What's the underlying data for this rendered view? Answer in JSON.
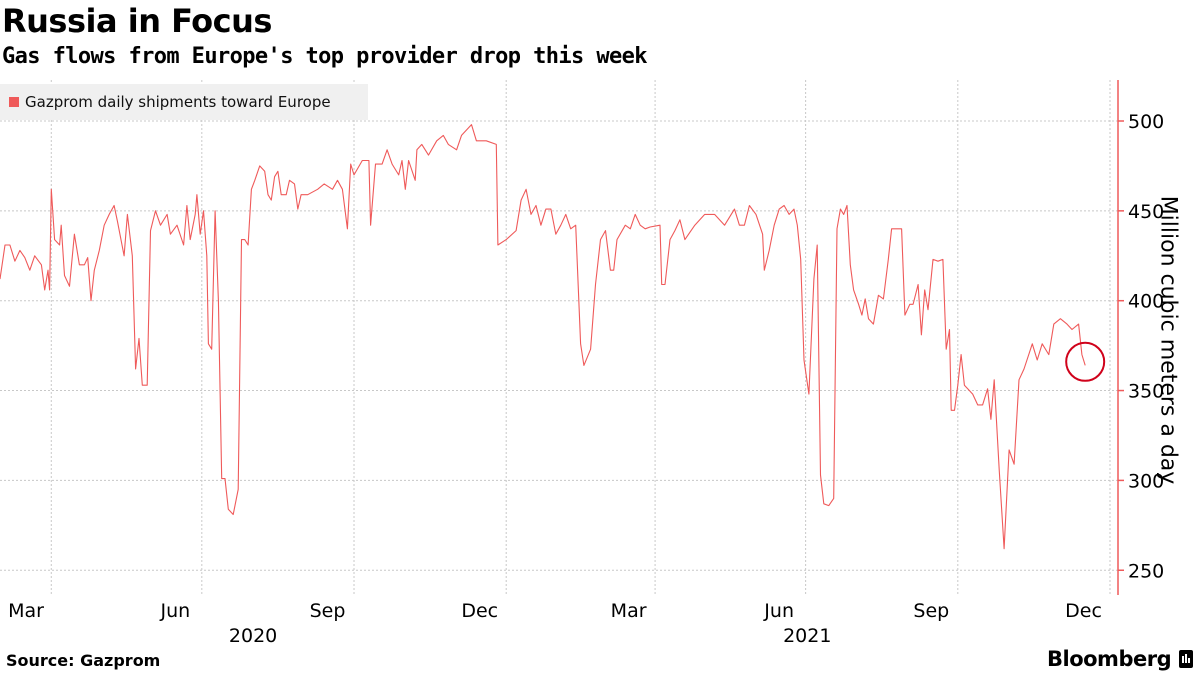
{
  "chart_data": {
    "type": "line",
    "title": "Russia in Focus",
    "subtitle": "Gas flows from Europe's top provider drop this week",
    "ylabel": "Million cubic meters a day",
    "xlabel": "",
    "ylim": [
      238,
      520
    ],
    "yticks": [
      250,
      300,
      350,
      400,
      450,
      500
    ],
    "x_unit": "days since 2020-03-01",
    "xlim": [
      0,
      671
    ],
    "grid": true,
    "legend_placement": "top-left",
    "month_ticks": [
      {
        "label": "Mar",
        "day": 15
      },
      {
        "label": "Jun",
        "day": 106
      },
      {
        "label": "Sep",
        "day": 198
      },
      {
        "label": "Dec",
        "day": 290
      },
      {
        "label": "Mar",
        "day": 380
      },
      {
        "label": "Jun",
        "day": 471
      },
      {
        "label": "Sep",
        "day": 563
      },
      {
        "label": "Dec",
        "day": 655
      }
    ],
    "quarter_gridlines_days": [
      31,
      122,
      214,
      306,
      396,
      487,
      579,
      671
    ],
    "years": [
      {
        "label": "2020",
        "day": 153
      },
      {
        "label": "2021",
        "day": 488
      }
    ],
    "series": [
      {
        "name": "Gazprom daily shipments toward Europe",
        "color": "#ef5a5a",
        "days": [
          0,
          3,
          6,
          9,
          12,
          15,
          18,
          21,
          25,
          27,
          29,
          30,
          31,
          33,
          36,
          37,
          39,
          42,
          45,
          48,
          51,
          53,
          55,
          57,
          60,
          63,
          66,
          69,
          71,
          75,
          77,
          80,
          82,
          84,
          86,
          89,
          91,
          94,
          97,
          101,
          103,
          107,
          111,
          113,
          115,
          118,
          119,
          121,
          123,
          125,
          126,
          128,
          130,
          132,
          134,
          136,
          138,
          141,
          144,
          146,
          148,
          150,
          152,
          154,
          157,
          160,
          162,
          164,
          166,
          168,
          170,
          173,
          175,
          178,
          180,
          182,
          186,
          192,
          196,
          201,
          204,
          207,
          210,
          212,
          214,
          219,
          223,
          224,
          227,
          231,
          234,
          237,
          241,
          243,
          245,
          247,
          251,
          252,
          255,
          259,
          264,
          268,
          271,
          276,
          279,
          282,
          285,
          288,
          294,
          300,
          301,
          306,
          312,
          315,
          318,
          321,
          324,
          327,
          330,
          333,
          336,
          339,
          342,
          345,
          348,
          351,
          353,
          357,
          360,
          363,
          366,
          369,
          371,
          373,
          378,
          381,
          384,
          387,
          390,
          393,
          399,
          400,
          402,
          405,
          408,
          411,
          414,
          420,
          426,
          432,
          438,
          444,
          447,
          450,
          453,
          457,
          461,
          462,
          465,
          468,
          471,
          474,
          477,
          480,
          482,
          484,
          486,
          489,
          492,
          494,
          496,
          498,
          501,
          504,
          506,
          508,
          510,
          512,
          514,
          516,
          519,
          521,
          523,
          525,
          528,
          531,
          534,
          537,
          539,
          543,
          545,
          547,
          550,
          552,
          555,
          557,
          559,
          561,
          564,
          567,
          570,
          572,
          574,
          575,
          577,
          579,
          581,
          583,
          585,
          588,
          591,
          594,
          597,
          599,
          601,
          604,
          607,
          610,
          613,
          616,
          619,
          624,
          627,
          630,
          634,
          637,
          641,
          645,
          648,
          652,
          654,
          656
        ],
        "values": [
          412,
          431,
          431,
          422,
          428,
          424,
          417,
          425,
          420,
          406,
          417,
          406,
          462,
          434,
          431,
          442,
          414,
          408,
          437,
          420,
          420,
          424,
          400,
          417,
          428,
          442,
          448,
          453,
          444,
          425,
          448,
          425,
          362,
          379,
          353,
          353,
          439,
          450,
          442,
          448,
          437,
          442,
          431,
          453,
          434,
          448,
          459,
          437,
          450,
          425,
          376,
          373,
          450,
          400,
          301,
          301,
          284,
          281,
          295,
          434,
          434,
          431,
          462,
          467,
          475,
          472,
          459,
          456,
          469,
          472,
          459,
          459,
          467,
          465,
          451,
          459,
          459,
          462,
          465,
          462,
          467,
          462,
          440,
          476,
          470,
          478,
          478,
          442,
          476,
          476,
          484,
          476,
          470,
          478,
          462,
          478,
          467,
          484,
          487,
          481,
          489,
          492,
          487,
          484,
          492,
          495,
          498,
          489,
          489,
          487,
          431,
          434,
          439,
          456,
          462,
          448,
          453,
          442,
          451,
          451,
          437,
          442,
          448,
          440,
          442,
          376,
          364,
          373,
          409,
          434,
          439,
          417,
          417,
          434,
          442,
          440,
          448,
          442,
          440,
          441,
          442,
          409,
          409,
          434,
          439,
          445,
          434,
          442,
          448,
          448,
          442,
          451,
          442,
          442,
          453,
          448,
          437,
          417,
          428,
          442,
          451,
          453,
          448,
          451,
          442,
          423,
          367,
          348,
          412,
          431,
          303,
          287,
          286,
          290,
          440,
          451,
          448,
          453,
          420,
          406,
          398,
          392,
          401,
          390,
          387,
          403,
          401,
          423,
          440,
          440,
          440,
          392,
          398,
          398,
          409,
          381,
          406,
          395,
          423,
          422,
          423,
          373,
          384,
          339,
          339,
          353,
          370,
          353,
          351,
          348,
          342,
          342,
          351,
          334,
          356,
          306,
          262,
          317,
          309,
          356,
          362,
          376,
          367,
          376,
          370,
          387,
          390,
          387,
          384,
          387,
          370,
          364
        ]
      }
    ],
    "annotation": {
      "type": "circle",
      "day": 656,
      "value": 366,
      "color": "#d0021b"
    },
    "source": "Source:  Gazprom",
    "brand": "Bloomberg"
  }
}
